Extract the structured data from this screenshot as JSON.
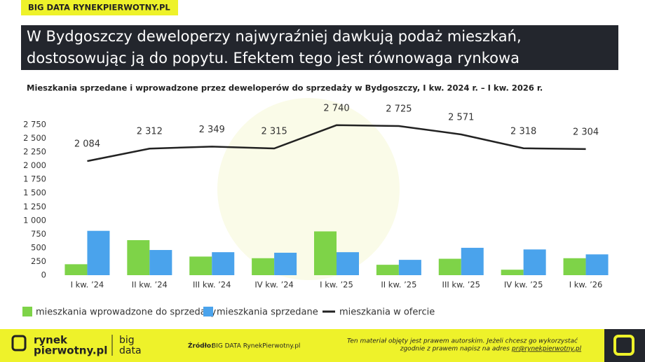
{
  "header": {
    "tag": "BIG DATA RYNEKPIERWOTNY.PL",
    "title_lines": [
      "W Bydgoszczy deweloperzy najwyraźniej dawkują podaż mieszkań,",
      "dostosowując ją do popytu. Efektem tego jest równowaga rynkowa"
    ]
  },
  "chart_data": {
    "type": "bar",
    "title": "Mieszkania sprzedane i wprowadzone przez deweloperów do sprzedaży w Bydgoszczy, I kw. 2024 r. – I kw. 2026 r.",
    "categories": [
      "I kw. ’24",
      "II kw. ’24",
      "III kw. ’24",
      "IV kw. ’24",
      "I kw. ’25",
      "II kw. ’25",
      "III kw. ’25",
      "IV kw. ’25",
      "I kw. ’26"
    ],
    "series": [
      {
        "name": "mieszkania wprowadzone do sprzedaży",
        "type": "bar",
        "color": "#7ed348",
        "values": [
          200,
          640,
          340,
          310,
          800,
          190,
          300,
          100,
          310
        ]
      },
      {
        "name": "mieszkania sprzedane",
        "type": "bar",
        "color": "#4aa3ec",
        "values": [
          810,
          460,
          420,
          410,
          420,
          280,
          500,
          470,
          380
        ]
      },
      {
        "name": "mieszkania w ofercie",
        "type": "line",
        "color": "#222222",
        "values": [
          2084,
          2312,
          2349,
          2315,
          2740,
          2725,
          2571,
          2318,
          2304
        ],
        "value_labels": [
          "2 084",
          "2 312",
          "2 349",
          "2 315",
          "2 740",
          "2 725",
          "2 571",
          "2 318",
          "2 304"
        ]
      }
    ],
    "ylim": [
      0,
      2750
    ],
    "yticks": [
      0,
      250,
      500,
      750,
      {
        "value": 1000,
        "label": "1 000"
      },
      {
        "value": 1250,
        "label": "1 250"
      },
      {
        "value": 1500,
        "label": "1 500"
      },
      {
        "value": 1750,
        "label": "1 750"
      },
      {
        "value": 2000,
        "label": "2 000"
      },
      {
        "value": 2250,
        "label": "2 250"
      },
      {
        "value": 2500,
        "label": "2 500"
      },
      {
        "value": 2750,
        "label": "2 750"
      }
    ],
    "grid": false,
    "legend": "bottom"
  },
  "footer": {
    "logo_top": "rynek",
    "logo_bottom": "pierwotny.pl",
    "logo_side_top": "big",
    "logo_side_bottom": "data",
    "source_label": "Źródło:",
    "source": "BIG DATA RynekPierwotny.pl",
    "notice_line1": "Ten materiał objęty jest prawem autorskim. Jeżeli chcesz go wykorzystać",
    "notice_line2": "zgodnie z prawem napisz na adres",
    "email": "pr@rynekpierwotny.pl"
  }
}
